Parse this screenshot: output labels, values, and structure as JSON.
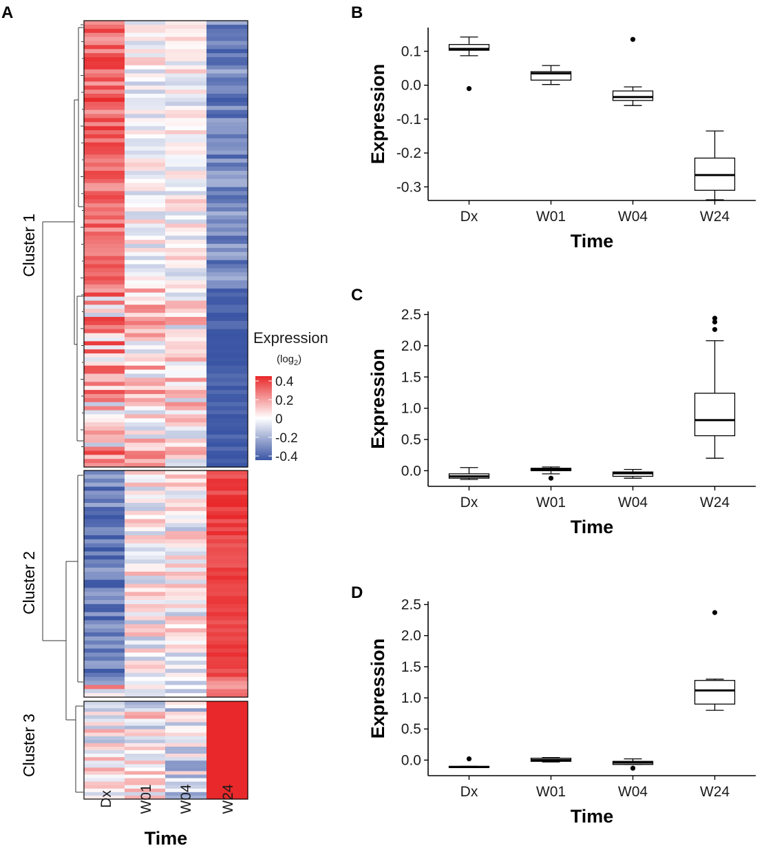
{
  "panels": {
    "A": "A",
    "B": "B",
    "C": "C",
    "D": "D"
  },
  "chart_data": [
    {
      "panel": "A",
      "type": "heatmap",
      "columns": [
        "Dx",
        "W01",
        "W04",
        "W24"
      ],
      "xlabel": "Time",
      "clusters": [
        {
          "name": "Cluster 1",
          "rows": 110,
          "pattern": "high at Dx, low at W24"
        },
        {
          "name": "Cluster 2",
          "rows": 56,
          "pattern": "low at Dx, high at W24"
        },
        {
          "name": "Cluster 3",
          "rows": 28,
          "pattern": "mixed early, high at W24"
        }
      ],
      "legend": {
        "title": "Expression",
        "subtitle_prefix": "(log",
        "subtitle_sub": "2",
        "subtitle_suffix": ")",
        "ticks": [
          "0.4",
          "0.2",
          "0",
          "-0.2",
          "-0.4"
        ],
        "range": [
          -0.45,
          0.45
        ],
        "colors": {
          "high": "#e8282a",
          "mid": "#ffffff",
          "low": "#3a55a4"
        }
      }
    },
    {
      "panel": "B",
      "type": "box",
      "categories": [
        "Dx",
        "W01",
        "W04",
        "W24"
      ],
      "xlabel": "Time",
      "ylabel": "Expression",
      "ylim": [
        -0.34,
        0.17
      ],
      "yticks": [
        0.1,
        0.0,
        -0.1,
        -0.2,
        -0.3
      ],
      "ytick_labels": [
        "0.1",
        "0.0",
        "-0.1",
        "-0.2",
        "-0.3"
      ],
      "boxes": [
        {
          "q1": 0.103,
          "median": 0.107,
          "q3": 0.12,
          "whisker_low": 0.087,
          "whisker_high": 0.142,
          "outliers": [
            -0.01
          ]
        },
        {
          "q1": 0.015,
          "median": 0.035,
          "q3": 0.04,
          "whisker_low": 0.002,
          "whisker_high": 0.058,
          "outliers": []
        },
        {
          "q1": -0.045,
          "median": -0.035,
          "q3": -0.017,
          "whisker_low": -0.06,
          "whisker_high": -0.005,
          "outliers": [
            0.135
          ]
        },
        {
          "q1": -0.31,
          "median": -0.265,
          "q3": -0.215,
          "whisker_low": -0.338,
          "whisker_high": -0.135,
          "outliers": []
        }
      ]
    },
    {
      "panel": "C",
      "type": "box",
      "categories": [
        "Dx",
        "W01",
        "W04",
        "W24"
      ],
      "xlabel": "Time",
      "ylabel": "Expression",
      "ylim": [
        -0.25,
        2.55
      ],
      "yticks": [
        2.5,
        2.0,
        1.5,
        1.0,
        0.5,
        0.0
      ],
      "ytick_labels": [
        "2.5",
        "2.0",
        "1.5",
        "1.0",
        "0.5",
        "0.0"
      ],
      "boxes": [
        {
          "q1": -0.12,
          "median": -0.09,
          "q3": -0.05,
          "whisker_low": -0.14,
          "whisker_high": 0.05,
          "outliers": []
        },
        {
          "q1": 0.0,
          "median": 0.02,
          "q3": 0.04,
          "whisker_low": -0.05,
          "whisker_high": 0.06,
          "outliers": [
            -0.12
          ]
        },
        {
          "q1": -0.09,
          "median": -0.04,
          "q3": -0.02,
          "whisker_low": -0.12,
          "whisker_high": 0.02,
          "outliers": []
        },
        {
          "q1": 0.56,
          "median": 0.81,
          "q3": 1.24,
          "whisker_low": 0.2,
          "whisker_high": 2.08,
          "outliers": [
            2.26,
            2.38,
            2.44
          ]
        }
      ]
    },
    {
      "panel": "D",
      "type": "box",
      "categories": [
        "Dx",
        "W01",
        "W04",
        "W24"
      ],
      "xlabel": "Time",
      "ylabel": "Expression",
      "ylim": [
        -0.25,
        2.55
      ],
      "yticks": [
        2.5,
        2.0,
        1.5,
        1.0,
        0.5,
        0.0
      ],
      "ytick_labels": [
        "2.5",
        "2.0",
        "1.5",
        "1.0",
        "0.5",
        "0.0"
      ],
      "boxes": [
        {
          "q1": -0.12,
          "median": -0.11,
          "q3": -0.1,
          "whisker_low": -0.12,
          "whisker_high": -0.1,
          "outliers": [
            0.02
          ]
        },
        {
          "q1": -0.02,
          "median": 0.0,
          "q3": 0.03,
          "whisker_low": -0.03,
          "whisker_high": 0.04,
          "outliers": []
        },
        {
          "q1": -0.07,
          "median": -0.04,
          "q3": -0.02,
          "whisker_low": -0.07,
          "whisker_high": 0.02,
          "outliers": [
            -0.13
          ]
        },
        {
          "q1": 0.9,
          "median": 1.12,
          "q3": 1.28,
          "whisker_low": 0.8,
          "whisker_high": 1.3,
          "outliers": [
            2.37
          ]
        }
      ]
    }
  ]
}
